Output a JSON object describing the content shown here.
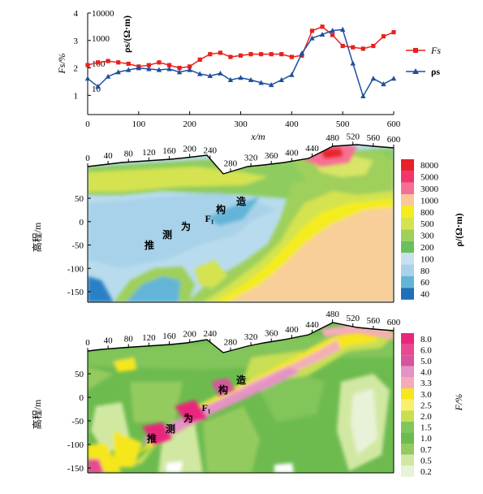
{
  "chart_data": [
    {
      "type": "line",
      "x_label": "x/m",
      "x_ticks": [
        0,
        100,
        200,
        300,
        400,
        500,
        600
      ],
      "xlim": [
        0,
        600
      ],
      "y_left_label": "Fs/%",
      "y_left_ticks": [
        1,
        2,
        3,
        4
      ],
      "y_left_lim": [
        0.3,
        4
      ],
      "y_right_label": "ρs/(Ω·m)",
      "y_right_ticks": [
        10,
        100,
        1000,
        10000
      ],
      "y_right_scale": "log",
      "legend_position": "right",
      "series": [
        {
          "name": "Fs",
          "axis": "left",
          "color": "#e8211b",
          "marker": "square",
          "x": [
            0,
            20,
            40,
            60,
            80,
            100,
            120,
            140,
            160,
            180,
            200,
            220,
            240,
            260,
            280,
            300,
            320,
            340,
            360,
            380,
            400,
            420,
            440,
            460,
            480,
            500,
            520,
            540,
            560,
            580,
            600
          ],
          "y": [
            2.1,
            2.2,
            2.25,
            2.2,
            2.15,
            2.05,
            2.1,
            2.2,
            2.1,
            2.0,
            2.05,
            2.3,
            2.5,
            2.55,
            2.4,
            2.45,
            2.5,
            2.5,
            2.5,
            2.5,
            2.4,
            2.45,
            3.35,
            3.5,
            3.2,
            2.8,
            2.75,
            2.7,
            2.8,
            3.15,
            3.3
          ]
        },
        {
          "name": "ρs",
          "axis": "right",
          "color": "#1f4e9e",
          "marker": "triangle",
          "x": [
            0,
            20,
            40,
            60,
            80,
            100,
            120,
            140,
            160,
            180,
            200,
            220,
            240,
            260,
            280,
            300,
            320,
            340,
            360,
            380,
            400,
            420,
            440,
            460,
            480,
            500,
            520,
            540,
            560,
            580,
            600
          ],
          "y": [
            25,
            12,
            30,
            45,
            55,
            65,
            60,
            55,
            60,
            45,
            55,
            38,
            32,
            40,
            22,
            27,
            22,
            17,
            14,
            22,
            35,
            250,
            1000,
            1400,
            2000,
            2200,
            100,
            5,
            25,
            15,
            25
          ]
        }
      ]
    },
    {
      "type": "heatmap",
      "colorbar_label": "ρ/(Ω·m)",
      "colorbar_ticks": [
        "8000",
        "5000",
        "3000",
        "1000",
        "800",
        "500",
        "300",
        "200",
        "100",
        "80",
        "60",
        "40"
      ],
      "colorbar_colors": [
        "#e8212a",
        "#f2356c",
        "#f66f93",
        "#fac79a",
        "#f4ec1c",
        "#d4e34f",
        "#9fd05c",
        "#6bbf5d",
        "#c8e0ef",
        "#a8d2ea",
        "#63b5d8",
        "#1f6fb9"
      ],
      "x_ticks": [
        "0",
        "40",
        "80",
        "120",
        "160",
        "200",
        "240",
        "280",
        "320",
        "360",
        "400",
        "440",
        "480",
        "520",
        "560",
        "600"
      ],
      "y_label": "高程/m",
      "y_ticks": [
        "50",
        "0",
        "-50",
        "-100",
        "-150"
      ],
      "annotation": [
        "推",
        "测",
        "为",
        "F₁",
        "构",
        "造"
      ]
    },
    {
      "type": "heatmap",
      "colorbar_label": "F/%",
      "colorbar_ticks": [
        "8.0",
        "6.0",
        "5.0",
        "4.0",
        "3.3",
        "3.0",
        "2.5",
        "2.0",
        "1.5",
        "1.0",
        "0.7",
        "0.5",
        "0.2"
      ],
      "colorbar_colors": [
        "#e8277c",
        "#e64b92",
        "#d8549e",
        "#e493c4",
        "#f4adb8",
        "#f6e61c",
        "#fcef6c",
        "#c9df52",
        "#82c55a",
        "#6dbb4f",
        "#94cb5e",
        "#d1e8a2",
        "#e8f2d8"
      ],
      "x_ticks": [
        "0",
        "40",
        "80",
        "120",
        "160",
        "200",
        "240",
        "280",
        "320",
        "360",
        "400",
        "440",
        "480",
        "520",
        "560",
        "600"
      ],
      "y_label": "高程/m",
      "y_ticks": [
        "50",
        "0",
        "-50",
        "-100",
        "-150"
      ],
      "annotation": [
        "推",
        "测",
        "为",
        "F₁",
        "构",
        "造"
      ]
    }
  ]
}
